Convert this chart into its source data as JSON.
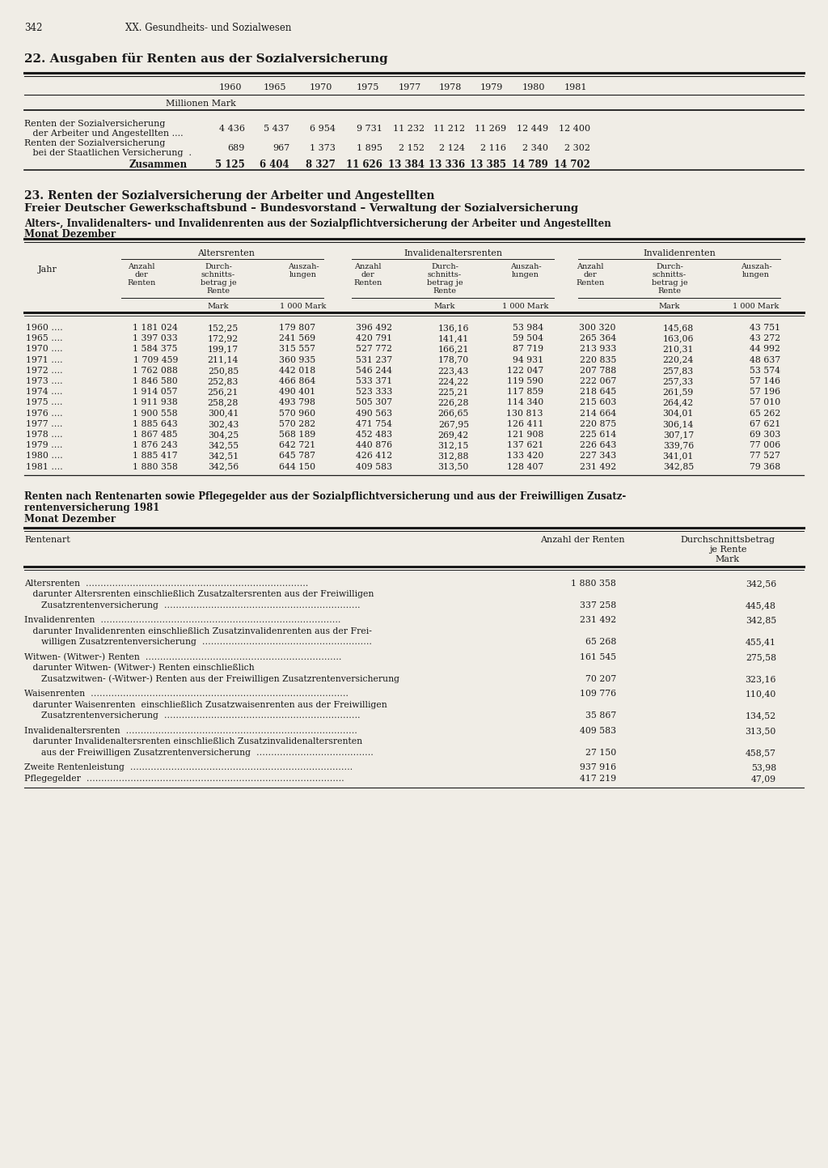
{
  "page_number": "342",
  "page_header": "XX. Gesundheits- und Sozialwesen",
  "bg_color": "#f0ede6",
  "section22": {
    "title": "22. Ausgaben für Renten aus der Sozialversicherung",
    "years": [
      "1960",
      "1965",
      "1970",
      "1975",
      "1977",
      "1978",
      "1979",
      "1980",
      "1981"
    ],
    "unit": "Millionen Mark",
    "row1_label1": "Renten der Sozialversicherung",
    "row1_label2": "   der Arbeiter und Angestellten ....",
    "row1_values": [
      "4 436",
      "5 437",
      "6 954",
      "9 731",
      "11 232",
      "11 212",
      "11 269",
      "12 449",
      "12 400"
    ],
    "row2_label1": "Renten der Sozialversicherung",
    "row2_label2": "   bei der Staatlichen Versicherung  .",
    "row2_values": [
      "689",
      "967",
      "1 373",
      "1 895",
      "2 152",
      "2 124",
      "2 116",
      "2 340",
      "2 302"
    ],
    "zusammen_label": "Zusammen",
    "zusammen_values": [
      "5 125",
      "6 404",
      "8 327",
      "11 626",
      "13 384",
      "13 336",
      "13 385",
      "14 789",
      "14 702"
    ]
  },
  "section23": {
    "title1": "23. Renten der Sozialversicherung der Arbeiter und Angestellten",
    "title2": "Freier Deutscher Gewerkschaftsbund – Bundesvorstand – Verwaltung der Sozialversicherung",
    "subtitle1": "Alters-, Invalidenalters- und Invalidenrenten aus der Sozialpflichtversicherung der Arbeiter und Angestellten",
    "subtitle2": "Monat Dezember",
    "col_groups": [
      "Altersrenten",
      "Invalidenaltersrenten",
      "Invalidenrenten"
    ],
    "data_rows": [
      [
        "1960 ….",
        "1 181 024",
        "152,25",
        "179 807",
        "396 492",
        "136,16",
        "53 984",
        "300 320",
        "145,68",
        "43 751"
      ],
      [
        "1965 ….",
        "1 397 033",
        "172,92",
        "241 569",
        "420 791",
        "141,41",
        "59 504",
        "265 364",
        "163,06",
        "43 272"
      ],
      [
        "1970 ….",
        "1 584 375",
        "199,17",
        "315 557",
        "527 772",
        "166,21",
        "87 719",
        "213 933",
        "210,31",
        "44 992"
      ],
      [
        "1971 ….",
        "1 709 459",
        "211,14",
        "360 935",
        "531 237",
        "178,70",
        "94 931",
        "220 835",
        "220,24",
        "48 637"
      ],
      [
        "1972 ….",
        "1 762 088",
        "250,85",
        "442 018",
        "546 244",
        "223,43",
        "122 047",
        "207 788",
        "257,83",
        "53 574"
      ],
      [
        "1973 ….",
        "1 846 580",
        "252,83",
        "466 864",
        "533 371",
        "224,22",
        "119 590",
        "222 067",
        "257,33",
        "57 146"
      ],
      [
        "1974 ….",
        "1 914 057",
        "256,21",
        "490 401",
        "523 333",
        "225,21",
        "117 859",
        "218 645",
        "261,59",
        "57 196"
      ],
      [
        "1975 ….",
        "1 911 938",
        "258,28",
        "493 798",
        "505 307",
        "226,28",
        "114 340",
        "215 603",
        "264,42",
        "57 010"
      ],
      [
        "1976 ….",
        "1 900 558",
        "300,41",
        "570 960",
        "490 563",
        "266,65",
        "130 813",
        "214 664",
        "304,01",
        "65 262"
      ],
      [
        "1977 ….",
        "1 885 643",
        "302,43",
        "570 282",
        "471 754",
        "267,95",
        "126 411",
        "220 875",
        "306,14",
        "67 621"
      ],
      [
        "1978 ….",
        "1 867 485",
        "304,25",
        "568 189",
        "452 483",
        "269,42",
        "121 908",
        "225 614",
        "307,17",
        "69 303"
      ],
      [
        "1979 ….",
        "1 876 243",
        "342,55",
        "642 721",
        "440 876",
        "312,15",
        "137 621",
        "226 643",
        "339,76",
        "77 006"
      ],
      [
        "1980 ….",
        "1 885 417",
        "342,51",
        "645 787",
        "426 412",
        "312,88",
        "133 420",
        "227 343",
        "341,01",
        "77 527"
      ],
      [
        "1981 ….",
        "1 880 358",
        "342,56",
        "644 150",
        "409 583",
        "313,50",
        "128 407",
        "231 492",
        "342,85",
        "79 368"
      ]
    ]
  },
  "section_renten": {
    "title1": "Renten nach Rentenarten sowie Pflegegelder aus der Sozialpflichtversicherung und aus der Freiwilligen Zusatz-",
    "title2": "rentenversicherung 1981",
    "title3": "Monat Dezember",
    "rows": [
      {
        "label": "Altersrenten  ………………………………………………………………….",
        "val1": "1 880 358",
        "val2": "342,56",
        "indent": 0,
        "blank_after": false
      },
      {
        "label": "   darunter Altersrenten einschließlich Zusatzaltersrenten aus der Freiwilligen",
        "val1": "",
        "val2": "",
        "indent": 0,
        "blank_after": false
      },
      {
        "label": "      Zusatzrentenversicherung  ………………………………………………………….",
        "val1": "337 258",
        "val2": "445,48",
        "indent": 0,
        "blank_after": true
      },
      {
        "label": "Invalidenrenten  ……………………………………………………………………….",
        "val1": "231 492",
        "val2": "342,85",
        "indent": 0,
        "blank_after": false
      },
      {
        "label": "   darunter Invalidenrenten einschließlich Zusatzinvalidenrenten aus der Frei-",
        "val1": "",
        "val2": "",
        "indent": 0,
        "blank_after": false
      },
      {
        "label": "      willigen Zusatzrentenversicherung  ………………………………………………….",
        "val1": "65 268",
        "val2": "455,41",
        "indent": 0,
        "blank_after": true
      },
      {
        "label": "Witwen- (Witwer-) Renten  ………………………………………………………….",
        "val1": "161 545",
        "val2": "275,58",
        "indent": 0,
        "blank_after": false
      },
      {
        "label": "   darunter Witwen- (Witwer-) Renten einschließlich",
        "val1": "",
        "val2": "",
        "indent": 0,
        "blank_after": false
      },
      {
        "label": "      Zusatzwitwen- (-Witwer-) Renten aus der Freiwilligen Zusatzrentenversicherung",
        "val1": "70 207",
        "val2": "323,16",
        "indent": 0,
        "blank_after": true
      },
      {
        "label": "Waisenrenten  …………………………………………………………………………….",
        "val1": "109 776",
        "val2": "110,40",
        "indent": 0,
        "blank_after": false
      },
      {
        "label": "   darunter Waisenrenten  einschließlich Zusatzwaisenrenten aus der Freiwilligen",
        "val1": "",
        "val2": "",
        "indent": 0,
        "blank_after": false
      },
      {
        "label": "      Zusatzrentenversicherung  ………………………………………………………….",
        "val1": "35 867",
        "val2": "134,52",
        "indent": 0,
        "blank_after": true
      },
      {
        "label": "Invalidenaltersrenten  …………………………………………………………………….",
        "val1": "409 583",
        "val2": "313,50",
        "indent": 0,
        "blank_after": false
      },
      {
        "label": "   darunter Invalidenaltersrenten einschließlich Zusatzinvalidenaltersrenten",
        "val1": "",
        "val2": "",
        "indent": 0,
        "blank_after": false
      },
      {
        "label": "      aus der Freiwilligen Zusatzrentenversicherung  ………………………………….",
        "val1": "27 150",
        "val2": "458,57",
        "indent": 0,
        "blank_after": true
      },
      {
        "label": "Zweite Rentenleistung  ………………………………………………………………….",
        "val1": "937 916",
        "val2": "53,98",
        "indent": 0,
        "blank_after": false
      },
      {
        "label": "Pflegegelder  …………………………………………………………………………….",
        "val1": "417 219",
        "val2": "47,09",
        "indent": 0,
        "blank_after": false
      }
    ]
  }
}
